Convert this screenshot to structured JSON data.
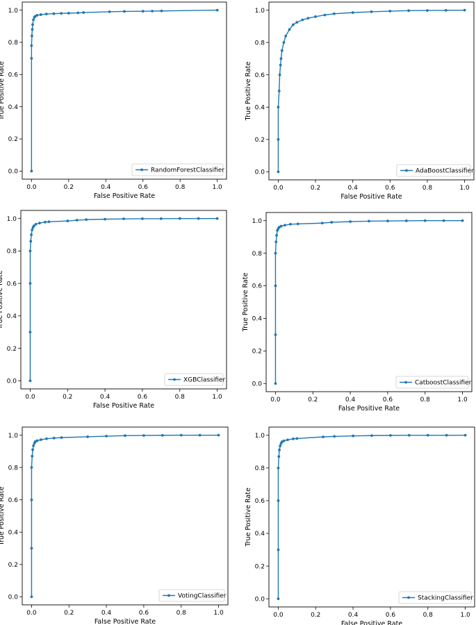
{
  "colors": {
    "line": "#1f77b4",
    "axis": "#000000",
    "legend_border": "#cccccc"
  },
  "chart_data": [
    {
      "type": "line",
      "xlabel": "False Positive Rate",
      "ylabel": "True Positive Rate",
      "xlim": [
        -0.05,
        1.05
      ],
      "ylim": [
        -0.05,
        1.05
      ],
      "xticks": [
        "0.0",
        "0.2",
        "0.4",
        "0.6",
        "0.8",
        "1.0"
      ],
      "yticks": [
        "0.0",
        "0.2",
        "0.4",
        "0.6",
        "0.8",
        "1.0"
      ],
      "grid": false,
      "legend_loc": "lower-right",
      "series": [
        {
          "name": "RandomForestClassifier",
          "x": [
            0,
            0,
            0,
            0.002,
            0.004,
            0.006,
            0.01,
            0.015,
            0.02,
            0.03,
            0.05,
            0.08,
            0.12,
            0.16,
            0.2,
            0.25,
            0.28,
            0.42,
            0.5,
            0.6,
            0.65,
            0.7,
            1.0
          ],
          "y": [
            0.0,
            0.7,
            0.78,
            0.84,
            0.88,
            0.91,
            0.94,
            0.955,
            0.962,
            0.968,
            0.972,
            0.976,
            0.978,
            0.98,
            0.981,
            0.983,
            0.985,
            0.99,
            0.992,
            0.993,
            0.994,
            0.995,
            1.0
          ]
        }
      ]
    },
    {
      "type": "line",
      "xlabel": "False Positive Rate",
      "ylabel": "True Positive Rate",
      "xlim": [
        -0.05,
        1.05
      ],
      "ylim": [
        -0.05,
        1.05
      ],
      "xticks": [
        "0.0",
        "0.2",
        "0.4",
        "0.6",
        "0.8",
        "1.0"
      ],
      "yticks": [
        "0.0",
        "0.2",
        "0.4",
        "0.6",
        "0.8",
        "1.0"
      ],
      "grid": false,
      "legend_loc": "lower-right",
      "series": [
        {
          "name": "AdaBoostClassifier",
          "x": [
            0,
            0,
            0,
            0.005,
            0.008,
            0.012,
            0.015,
            0.02,
            0.03,
            0.04,
            0.06,
            0.08,
            0.1,
            0.13,
            0.16,
            0.2,
            0.25,
            0.3,
            0.4,
            0.5,
            0.6,
            0.7,
            0.8,
            0.9,
            1.0
          ],
          "y": [
            0.0,
            0.2,
            0.4,
            0.5,
            0.6,
            0.66,
            0.7,
            0.75,
            0.8,
            0.84,
            0.88,
            0.91,
            0.925,
            0.94,
            0.95,
            0.96,
            0.97,
            0.978,
            0.985,
            0.99,
            0.994,
            0.997,
            0.998,
            0.999,
            1.0
          ]
        }
      ]
    },
    {
      "type": "line",
      "xlabel": "False Positive Rate",
      "ylabel": "True Positive Rate",
      "xlim": [
        -0.05,
        1.05
      ],
      "ylim": [
        -0.05,
        1.05
      ],
      "xticks": [
        "0.0",
        "0.2",
        "0.4",
        "0.6",
        "0.8",
        "1.0"
      ],
      "yticks": [
        "0.0",
        "0.2",
        "0.4",
        "0.6",
        "0.8",
        "1.0"
      ],
      "grid": false,
      "legend_loc": "lower-right",
      "series": [
        {
          "name": "XGBClassifier",
          "x": [
            0,
            0,
            0,
            0,
            0.003,
            0.006,
            0.01,
            0.015,
            0.02,
            0.03,
            0.05,
            0.08,
            0.1,
            0.2,
            0.25,
            0.3,
            0.4,
            0.5,
            0.6,
            0.7,
            0.8,
            0.9,
            1.0
          ],
          "y": [
            0.0,
            0.3,
            0.6,
            0.8,
            0.86,
            0.9,
            0.93,
            0.945,
            0.955,
            0.965,
            0.972,
            0.978,
            0.98,
            0.985,
            0.99,
            0.993,
            0.996,
            0.998,
            0.999,
            0.999,
            1.0,
            1.0,
            1.0
          ]
        }
      ]
    },
    {
      "type": "line",
      "xlabel": "False Positive Rate",
      "ylabel": "True Positive Rate",
      "xlim": [
        -0.05,
        1.05
      ],
      "ylim": [
        -0.05,
        1.05
      ],
      "xticks": [
        "0.0",
        "0.2",
        "0.4",
        "0.6",
        "0.8",
        "1.0"
      ],
      "yticks": [
        "0.0",
        "0.2",
        "0.4",
        "0.6",
        "0.8",
        "1.0"
      ],
      "grid": false,
      "legend_loc": "lower-right",
      "series": [
        {
          "name": "CatboostClassifier",
          "x": [
            0,
            0,
            0,
            0,
            0.003,
            0.006,
            0.01,
            0.015,
            0.02,
            0.03,
            0.05,
            0.08,
            0.12,
            0.25,
            0.3,
            0.4,
            0.5,
            0.6,
            0.7,
            0.8,
            0.9,
            1.0
          ],
          "y": [
            0.0,
            0.3,
            0.6,
            0.8,
            0.87,
            0.91,
            0.94,
            0.952,
            0.96,
            0.966,
            0.972,
            0.978,
            0.98,
            0.985,
            0.99,
            0.994,
            0.997,
            0.998,
            0.999,
            1.0,
            1.0,
            1.0
          ]
        }
      ]
    },
    {
      "type": "line",
      "xlabel": "False Positive Rate",
      "ylabel": "True Positive Rate",
      "xlim": [
        -0.05,
        1.05
      ],
      "ylim": [
        -0.05,
        1.05
      ],
      "xticks": [
        "0.0",
        "0.2",
        "0.4",
        "0.6",
        "0.8",
        "1.0"
      ],
      "yticks": [
        "0.0",
        "0.2",
        "0.4",
        "0.6",
        "0.8",
        "1.0"
      ],
      "grid": false,
      "legend_loc": "lower-right",
      "series": [
        {
          "name": "VotingClassifier",
          "x": [
            0,
            0,
            0,
            0,
            0.003,
            0.006,
            0.01,
            0.015,
            0.02,
            0.03,
            0.05,
            0.08,
            0.12,
            0.16,
            0.3,
            0.4,
            0.5,
            0.6,
            0.7,
            0.8,
            0.9,
            1.0
          ],
          "y": [
            0.0,
            0.3,
            0.6,
            0.8,
            0.87,
            0.91,
            0.935,
            0.95,
            0.96,
            0.966,
            0.972,
            0.978,
            0.982,
            0.985,
            0.99,
            0.994,
            0.997,
            0.998,
            0.999,
            1.0,
            1.0,
            1.0
          ]
        }
      ]
    },
    {
      "type": "line",
      "xlabel": "False Positive Rate",
      "ylabel": "True Positive Rate",
      "xlim": [
        -0.05,
        1.05
      ],
      "ylim": [
        -0.05,
        1.05
      ],
      "xticks": [
        "0.0",
        "0.2",
        "0.4",
        "0.6",
        "0.8",
        "1.0"
      ],
      "yticks": [
        "0.0",
        "0.2",
        "0.4",
        "0.6",
        "0.8",
        "1.0"
      ],
      "grid": false,
      "legend_loc": "lower-right",
      "series": [
        {
          "name": "StackingClassifier",
          "x": [
            0,
            0,
            0,
            0,
            0.003,
            0.006,
            0.01,
            0.015,
            0.02,
            0.03,
            0.05,
            0.08,
            0.1,
            0.24,
            0.3,
            0.4,
            0.5,
            0.6,
            0.7,
            0.8,
            0.9,
            1.0
          ],
          "y": [
            0.0,
            0.3,
            0.6,
            0.8,
            0.87,
            0.91,
            0.935,
            0.95,
            0.96,
            0.966,
            0.972,
            0.978,
            0.98,
            0.99,
            0.993,
            0.996,
            0.998,
            0.999,
            1.0,
            1.0,
            1.0,
            1.0
          ]
        }
      ]
    }
  ]
}
